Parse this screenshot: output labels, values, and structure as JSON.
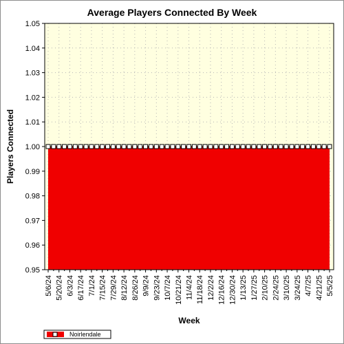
{
  "chart_data": {
    "type": "area",
    "title": "Average Players Connected By Week",
    "xlabel": "Week",
    "ylabel": "Players Connected",
    "ylim": [
      0.95,
      1.05
    ],
    "yticks": [
      "0.95",
      "0.96",
      "0.97",
      "0.98",
      "0.99",
      "1.00",
      "1.01",
      "1.02",
      "1.03",
      "1.04",
      "1.05"
    ],
    "x": [
      "2024-05-06",
      "2024-05-13",
      "2024-05-20",
      "2024-05-27",
      "2024-06-03",
      "2024-06-10",
      "2024-06-17",
      "2024-06-24",
      "2024-07-01",
      "2024-07-08",
      "2024-07-15",
      "2024-07-22",
      "2024-07-29",
      "2024-08-05",
      "2024-08-12",
      "2024-08-19",
      "2024-08-26",
      "2024-09-02",
      "2024-09-09",
      "2024-09-16",
      "2024-09-23",
      "2024-09-30",
      "2024-10-07",
      "2024-10-14",
      "2024-10-21",
      "2024-10-28",
      "2024-11-04",
      "2024-11-11",
      "2024-11-18",
      "2024-11-25",
      "2024-12-02",
      "2024-12-09",
      "2024-12-16",
      "2024-12-23",
      "2024-12-30",
      "2025-01-06",
      "2025-01-13",
      "2025-01-20",
      "2025-01-27",
      "2025-02-03",
      "2025-02-10",
      "2025-02-17",
      "2025-02-24",
      "2025-03-03",
      "2025-03-10",
      "2025-03-17",
      "2025-03-24",
      "2025-03-31",
      "2025-04-07",
      "2025-04-14",
      "2025-04-21",
      "2025-04-28",
      "2025-05-05"
    ],
    "xtick_labels": [
      "5/6/24",
      "5/20/24",
      "6/3/24",
      "6/17/24",
      "7/1/24",
      "7/15/24",
      "7/29/24",
      "8/12/24",
      "8/26/24",
      "9/9/24",
      "9/23/24",
      "10/7/24",
      "10/21/24",
      "11/4/24",
      "11/18/24",
      "12/2/24",
      "12/16/24",
      "12/30/24",
      "1/13/25",
      "1/27/25",
      "2/10/25",
      "2/24/25",
      "3/10/25",
      "3/24/25",
      "4/7/25",
      "4/21/25",
      "5/5/25"
    ],
    "series": [
      {
        "name": "Noirlendale",
        "color": "#f00000",
        "values": [
          1,
          1,
          1,
          1,
          1,
          1,
          1,
          1,
          1,
          1,
          1,
          1,
          1,
          1,
          1,
          1,
          1,
          1,
          1,
          1,
          1,
          1,
          1,
          1,
          1,
          1,
          1,
          1,
          1,
          1,
          1,
          1,
          1,
          1,
          1,
          1,
          1,
          1,
          1,
          1,
          1,
          1,
          1,
          1,
          1,
          1,
          1,
          1,
          1,
          1,
          1,
          1,
          1
        ]
      }
    ],
    "grid": true,
    "legend": "bottom-left",
    "plot_background": "#ffffe0"
  }
}
